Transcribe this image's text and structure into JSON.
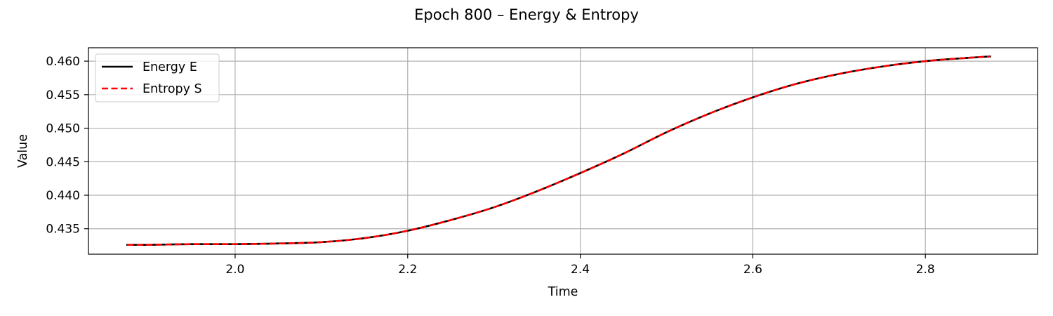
{
  "chart_data": {
    "type": "line",
    "title": "Epoch 800 – Energy & Entropy",
    "xlabel": "Time",
    "ylabel": "Value",
    "xlim": [
      1.83,
      2.93
    ],
    "ylim": [
      0.4312,
      0.462
    ],
    "xticks": [
      2.0,
      2.2,
      2.4,
      2.6,
      2.8
    ],
    "xtick_labels": [
      "2.0",
      "2.2",
      "2.4",
      "2.6",
      "2.8"
    ],
    "yticks": [
      0.435,
      0.44,
      0.445,
      0.45,
      0.455,
      0.46
    ],
    "ytick_labels": [
      "0.435",
      "0.440",
      "0.445",
      "0.450",
      "0.455",
      "0.460"
    ],
    "grid": true,
    "legend_position": "top-left",
    "x": [
      1.875,
      1.9,
      1.95,
      2.0,
      2.05,
      2.1,
      2.15,
      2.2,
      2.25,
      2.3,
      2.35,
      2.4,
      2.45,
      2.5,
      2.55,
      2.6,
      2.65,
      2.7,
      2.75,
      2.8,
      2.85,
      2.875
    ],
    "series": [
      {
        "name": "Energy E",
        "color": "#000000",
        "style": "solid",
        "values": [
          0.4326,
          0.4326,
          0.4327,
          0.4327,
          0.4328,
          0.433,
          0.4336,
          0.4347,
          0.4363,
          0.4382,
          0.4406,
          0.4433,
          0.4462,
          0.4494,
          0.4522,
          0.4546,
          0.4566,
          0.4581,
          0.4592,
          0.46,
          0.4605,
          0.4607
        ]
      },
      {
        "name": "Entropy S",
        "color": "#ff0000",
        "style": "dashed",
        "values": [
          0.4326,
          0.4326,
          0.4327,
          0.4327,
          0.4328,
          0.433,
          0.4336,
          0.4347,
          0.4363,
          0.4382,
          0.4406,
          0.4433,
          0.4462,
          0.4494,
          0.4522,
          0.4546,
          0.4566,
          0.4581,
          0.4592,
          0.46,
          0.4605,
          0.4607
        ]
      }
    ]
  }
}
